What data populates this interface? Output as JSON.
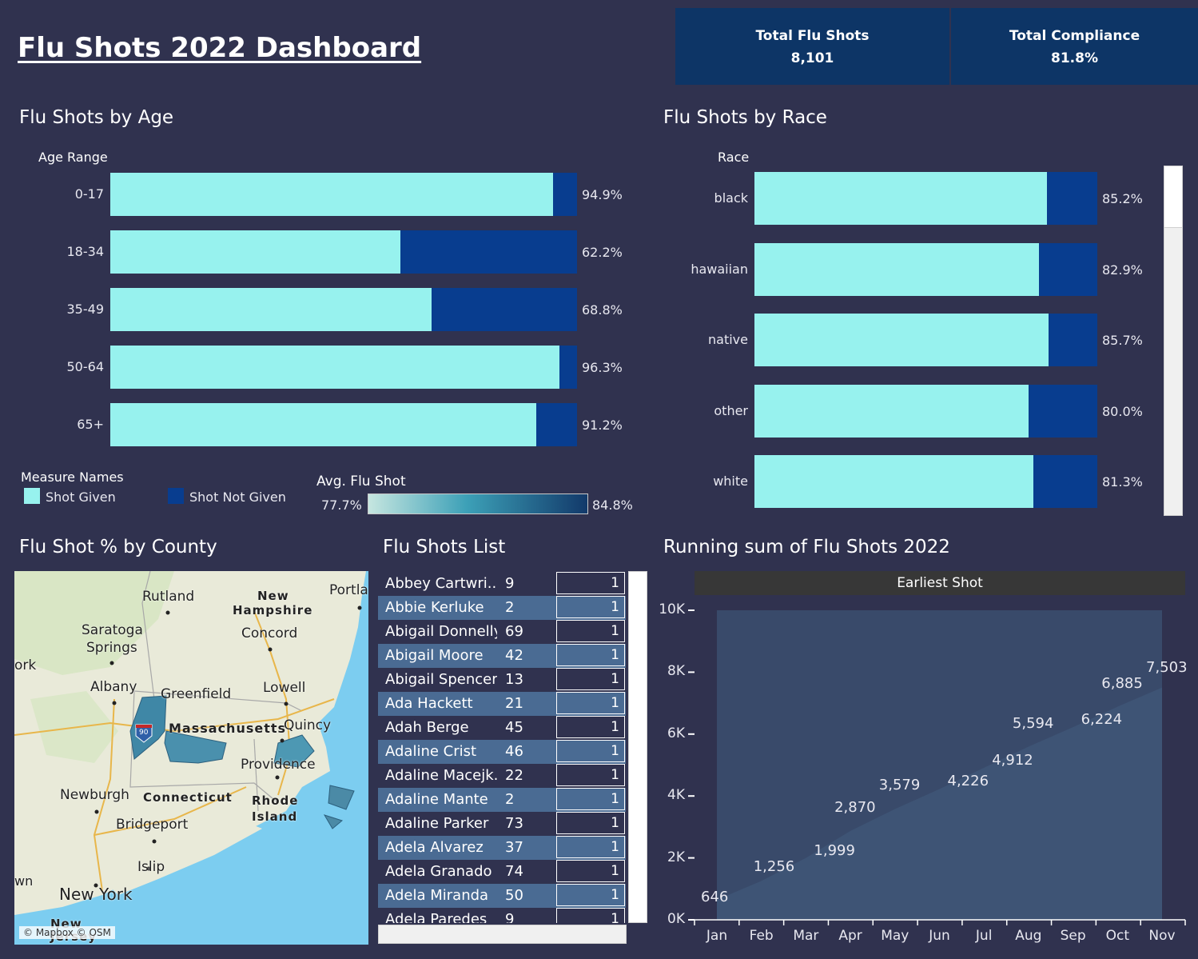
{
  "title": "Flu Shots 2022 Dashboard",
  "kpis": [
    {
      "label": "Total Flu Shots",
      "value": "8,101"
    },
    {
      "label": "Total Compliance",
      "value": "81.8%"
    }
  ],
  "colors": {
    "background": "#30324f",
    "shot_given": "#97f2ee",
    "shot_not_given": "#083d8f",
    "kpi_bg": "#0d3566",
    "area": "#3e5475",
    "area_bg": "#394a6a"
  },
  "age_section": {
    "title": "Flu Shots by Age",
    "header": "Age Range"
  },
  "race_section": {
    "title": "Flu Shots by Race",
    "header": "Race"
  },
  "legend": {
    "title": "Measure Names",
    "items": [
      "Shot Given",
      "Shot Not Given"
    ],
    "gradient_title": "Avg. Flu Shot",
    "gradient_min": "77.7%",
    "gradient_max": "84.8%"
  },
  "map_section": {
    "title": "Flu Shot % by County",
    "credit": "© Mapbox © OSM",
    "labels": [
      "Rutland",
      "New",
      "Hampshire",
      "Portla",
      "Saratoga",
      "Springs",
      "Concord",
      "ork",
      "Albany",
      "Greenfield",
      "Lowell",
      "Massachusetts",
      "Quincy",
      "Providence",
      "Newburgh",
      "Connecticut",
      "Rhode",
      "Island",
      "Bridgeport",
      "Islip",
      "New York",
      "wn",
      "New",
      "Jersey",
      "90"
    ]
  },
  "list_section": {
    "title": "Flu Shots List",
    "rows": [
      {
        "name": "Abbey Cartwri..",
        "age": "9",
        "count": "1"
      },
      {
        "name": "Abbie Kerluke",
        "age": "2",
        "count": "1"
      },
      {
        "name": "Abigail Donnelly",
        "age": "69",
        "count": "1"
      },
      {
        "name": "Abigail Moore",
        "age": "42",
        "count": "1"
      },
      {
        "name": "Abigail Spencer",
        "age": "13",
        "count": "1"
      },
      {
        "name": "Ada Hackett",
        "age": "21",
        "count": "1"
      },
      {
        "name": "Adah Berge",
        "age": "45",
        "count": "1"
      },
      {
        "name": "Adaline Crist",
        "age": "46",
        "count": "1"
      },
      {
        "name": "Adaline Macejk..",
        "age": "22",
        "count": "1"
      },
      {
        "name": "Adaline Mante",
        "age": "2",
        "count": "1"
      },
      {
        "name": "Adaline Parker",
        "age": "73",
        "count": "1"
      },
      {
        "name": "Adela Alvarez",
        "age": "37",
        "count": "1"
      },
      {
        "name": "Adela Granado",
        "age": "74",
        "count": "1"
      },
      {
        "name": "Adela Miranda",
        "age": "50",
        "count": "1"
      },
      {
        "name": "Adela Paredes",
        "age": "9",
        "count": "1"
      }
    ]
  },
  "running_section": {
    "title": "Running sum of Flu Shots 2022",
    "header": "Earliest Shot"
  },
  "chart_data": [
    {
      "type": "bar",
      "title": "Flu Shots by Age",
      "stacked": true,
      "orientation": "horizontal",
      "categories": [
        "0-17",
        "18-34",
        "35-49",
        "50-64",
        "65+"
      ],
      "series": [
        {
          "name": "Shot Given",
          "values": [
            94.9,
            62.2,
            68.8,
            96.3,
            91.2
          ]
        },
        {
          "name": "Shot Not Given",
          "values": [
            5.1,
            37.8,
            31.2,
            3.7,
            8.8
          ]
        }
      ],
      "labels": [
        "94.9%",
        "62.2%",
        "68.8%",
        "96.3%",
        "91.2%"
      ],
      "xlim": [
        0,
        100
      ]
    },
    {
      "type": "bar",
      "title": "Flu Shots by Race",
      "stacked": true,
      "orientation": "horizontal",
      "categories": [
        "black",
        "hawaiian",
        "native",
        "other",
        "white"
      ],
      "series": [
        {
          "name": "Shot Given",
          "values": [
            85.2,
            82.9,
            85.7,
            80.0,
            81.3
          ]
        },
        {
          "name": "Shot Not Given",
          "values": [
            14.8,
            17.1,
            14.3,
            20.0,
            18.7
          ]
        }
      ],
      "labels": [
        "85.2%",
        "82.9%",
        "85.7%",
        "80.0%",
        "81.3%"
      ],
      "xlim": [
        0,
        100
      ]
    },
    {
      "type": "area",
      "title": "Running sum of Flu Shots 2022",
      "x": [
        "Jan",
        "Feb",
        "Mar",
        "Apr",
        "May",
        "Jun",
        "Jul",
        "Aug",
        "Sep",
        "Oct",
        "Nov"
      ],
      "values": [
        646,
        1256,
        1999,
        2870,
        3579,
        4226,
        4912,
        5594,
        6224,
        6885,
        7503
      ],
      "labels": [
        "646",
        "1,256",
        "1,999",
        "2,870",
        "3,579",
        "4,226",
        "4,912",
        "5,594",
        "6,224",
        "6,885",
        "7,503"
      ],
      "yticks": [
        "0K",
        "2K",
        "4K",
        "6K",
        "8K",
        "10K"
      ],
      "ylim": [
        0,
        10000
      ]
    }
  ]
}
